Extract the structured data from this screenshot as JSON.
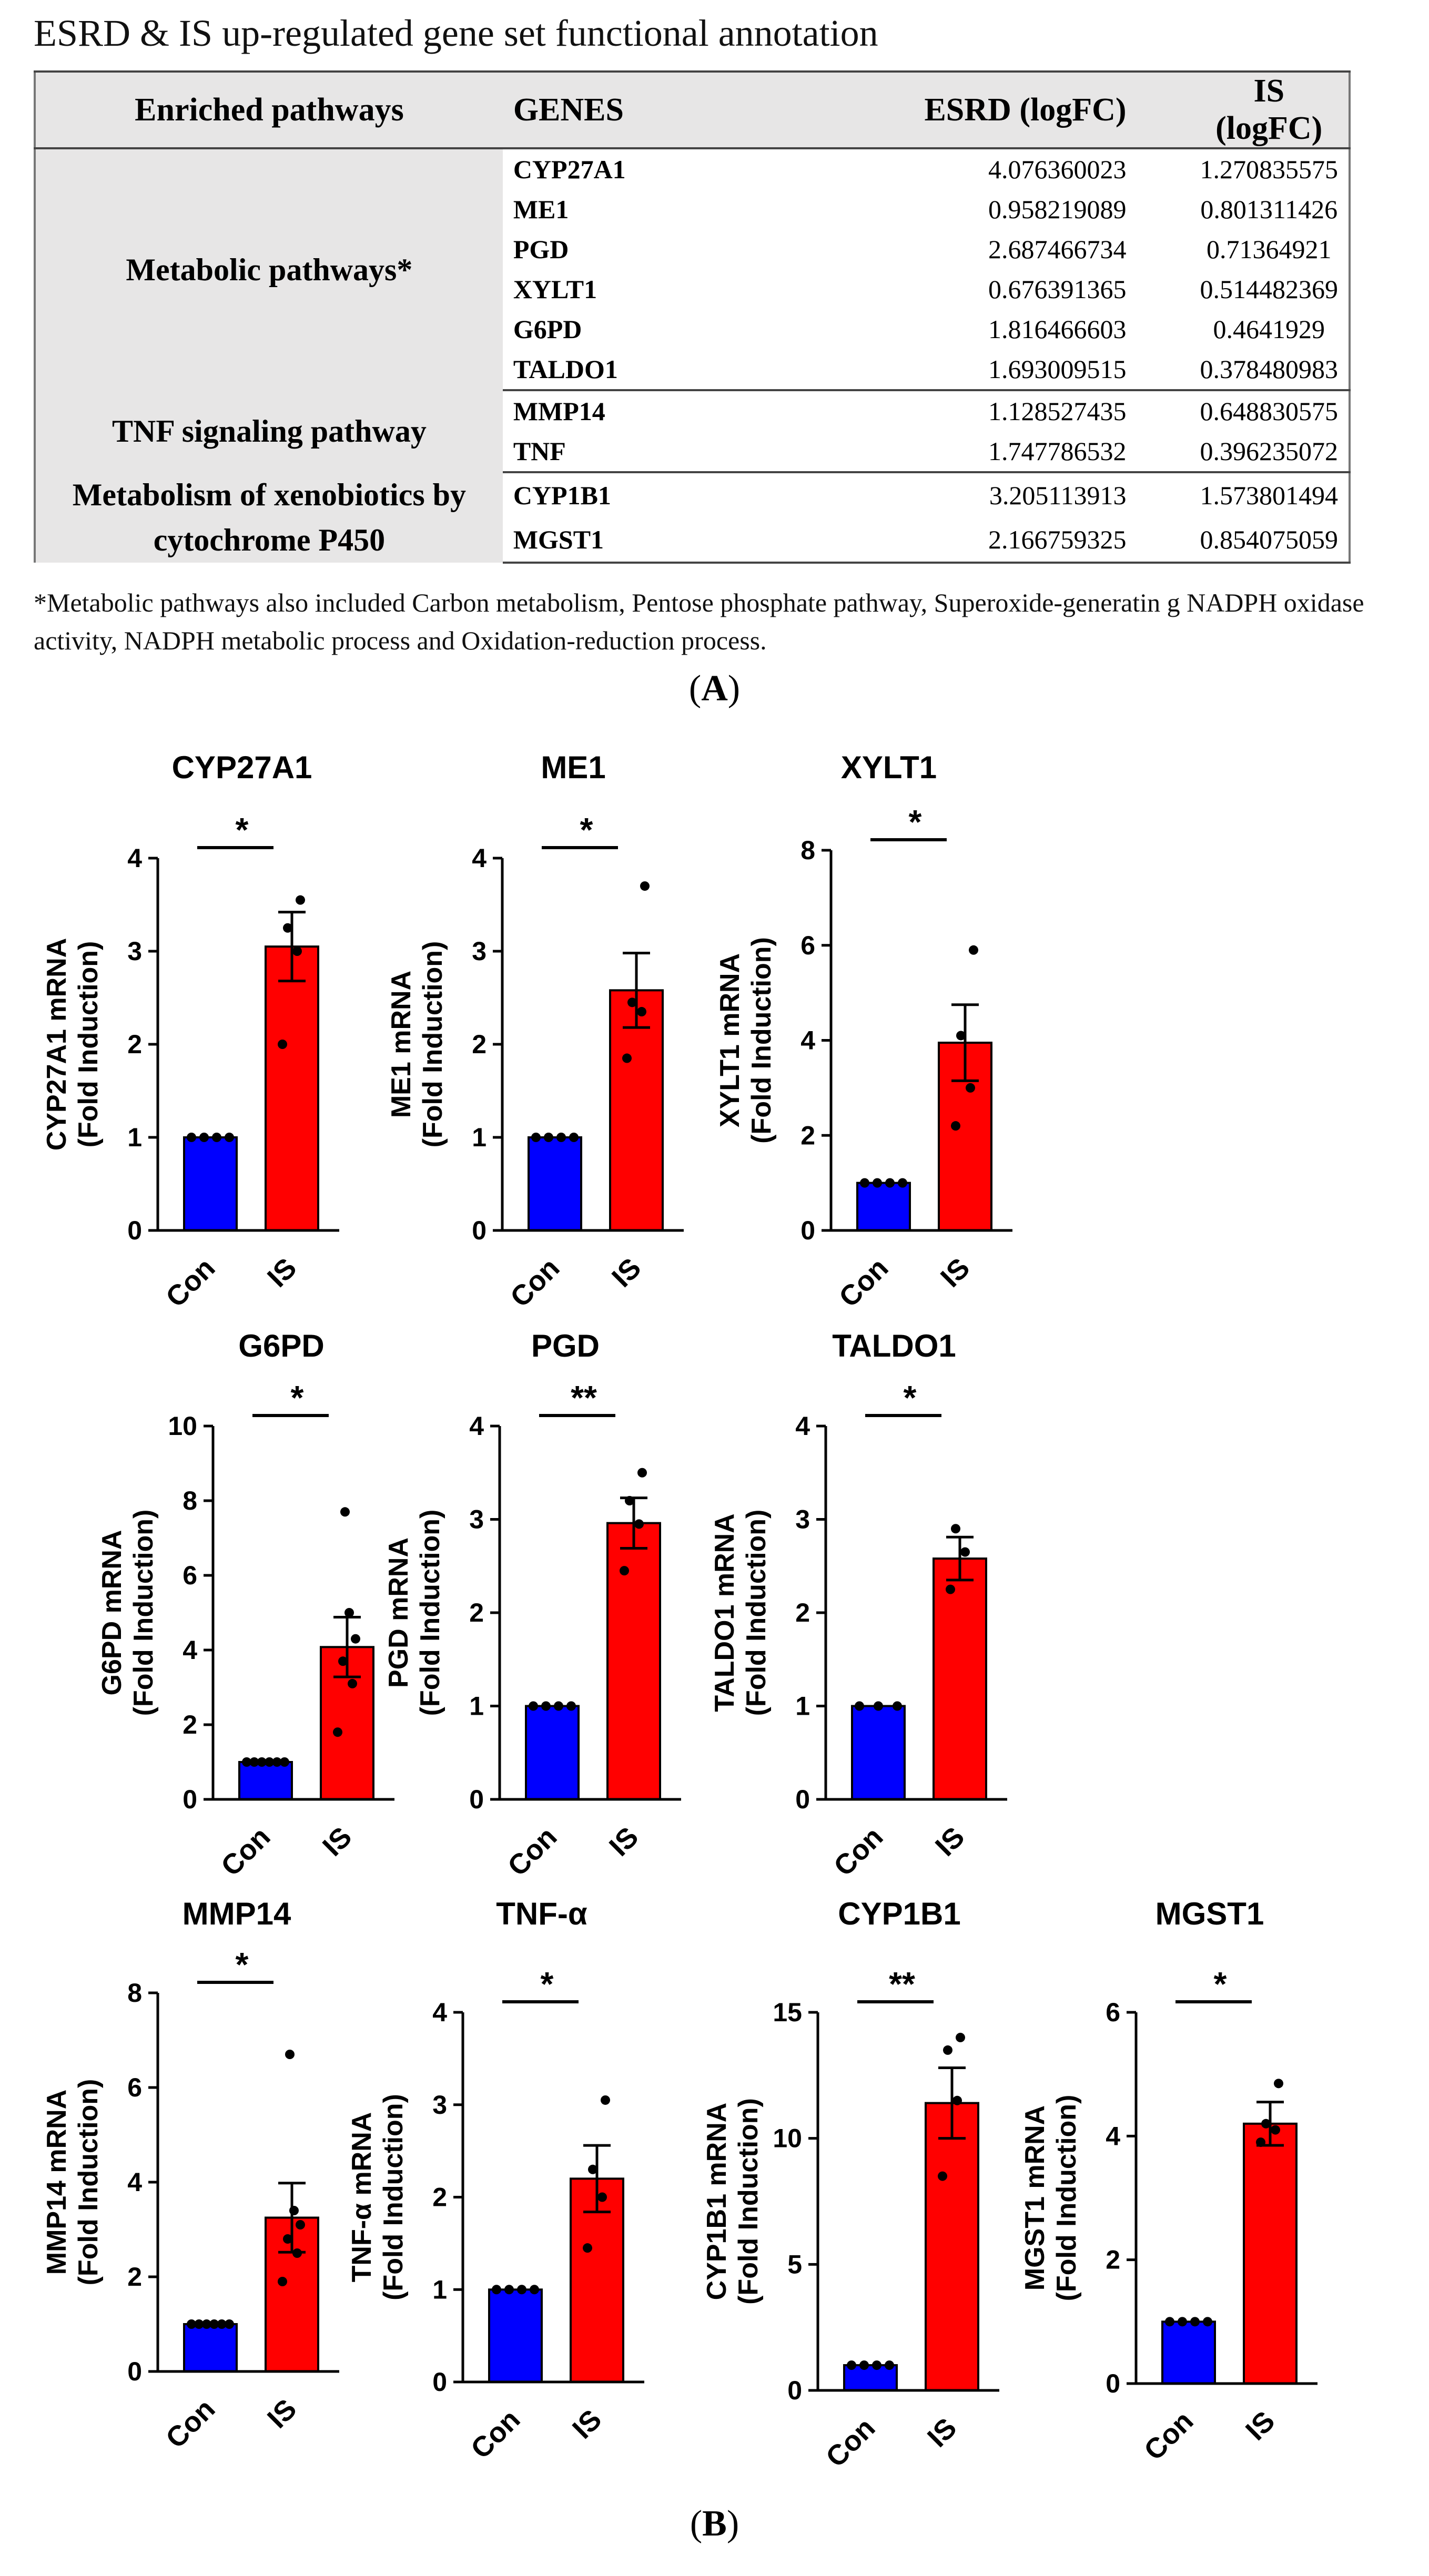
{
  "table": {
    "title": "ESRD & IS up-regulated gene set functional annotation",
    "headers": [
      "Enriched pathways",
      "GENES",
      "ESRD (logFC)",
      "IS (logFC)"
    ],
    "groups": [
      {
        "pathway": "Metabolic pathways*",
        "rows": [
          {
            "gene": "CYP27A1",
            "esrd": "4.076360023",
            "is": "1.270835575"
          },
          {
            "gene": "ME1",
            "esrd": "0.958219089",
            "is": "0.801311426"
          },
          {
            "gene": "PGD",
            "esrd": "2.687466734",
            "is": "0.71364921"
          },
          {
            "gene": "XYLT1",
            "esrd": "0.676391365",
            "is": "0.514482369"
          },
          {
            "gene": "G6PD",
            "esrd": "1.816466603",
            "is": "0.4641929"
          },
          {
            "gene": "TALDO1",
            "esrd": "1.693009515",
            "is": "0.378480983"
          }
        ]
      },
      {
        "pathway": "TNF signaling pathway",
        "rows": [
          {
            "gene": "MMP14",
            "esrd": "1.128527435",
            "is": "0.648830575"
          },
          {
            "gene": "TNF",
            "esrd": "1.747786532",
            "is": "0.396235072"
          }
        ]
      },
      {
        "pathway": "Metabolism of xenobiotics by cytochrome P450",
        "rows": [
          {
            "gene": "CYP1B1",
            "esrd": "3.205113913",
            "is": "1.573801494"
          },
          {
            "gene": "MGST1",
            "esrd": "2.166759325",
            "is": "0.854075059"
          }
        ]
      }
    ],
    "footnote": "*Metabolic pathways also included Carbon metabolism, Pentose phosphate pathway,  Superoxide-generatin g NADPH oxidase activity, NADPH metabolic process and Oxidation-reduction process."
  },
  "panel_labels": {
    "a": {
      "open": "(",
      "letter": "A",
      "close": ")"
    },
    "b": {
      "open": "(",
      "letter": "B",
      "close": ")"
    }
  },
  "colors": {
    "con_bar": "#0000ff",
    "is_bar": "#ff0000",
    "table_header_bg": "#e7e6e6"
  },
  "chart_data": [
    {
      "type": "bar",
      "title": "CYP27A1",
      "ylabel": "CYP27A1 mRNA",
      "ylabel2": "(Fold Induction)",
      "categories": [
        "Con",
        "IS"
      ],
      "values": [
        1.0,
        3.05
      ],
      "errors": [
        0,
        0.37
      ],
      "points": [
        [
          1,
          1,
          1,
          1
        ],
        [
          2.0,
          3.0,
          3.25,
          3.55
        ]
      ],
      "significance": "*",
      "ylim": [
        0,
        4
      ],
      "yticks": [
        "0",
        "1",
        "2",
        "3",
        "4"
      ]
    },
    {
      "type": "bar",
      "title": "ME1",
      "ylabel": "ME1 mRNA",
      "ylabel2": "(Fold Induction)",
      "categories": [
        "Con",
        "IS"
      ],
      "values": [
        1.0,
        2.58
      ],
      "errors": [
        0,
        0.4
      ],
      "points": [
        [
          1,
          1,
          1,
          1
        ],
        [
          1.85,
          2.35,
          2.45,
          3.7
        ]
      ],
      "significance": "*",
      "ylim": [
        0,
        4
      ],
      "yticks": [
        "0",
        "1",
        "2",
        "3",
        "4"
      ]
    },
    {
      "type": "bar",
      "title": "XYLT1",
      "ylabel": "XYLT1 mRNA",
      "ylabel2": "(Fold Induction)",
      "categories": [
        "Con",
        "IS"
      ],
      "values": [
        1.0,
        3.95
      ],
      "errors": [
        0,
        0.8
      ],
      "points": [
        [
          1,
          1,
          1,
          1
        ],
        [
          2.2,
          3.0,
          4.1,
          5.9
        ]
      ],
      "significance": "*",
      "ylim": [
        0,
        8
      ],
      "yticks": [
        "0",
        "2",
        "4",
        "6",
        "8"
      ]
    },
    {
      "type": "bar",
      "title": "G6PD",
      "ylabel": "G6PD mRNA",
      "ylabel2": "(Fold Induction)",
      "categories": [
        "Con",
        "IS"
      ],
      "values": [
        1.0,
        4.08
      ],
      "errors": [
        0,
        0.8
      ],
      "points": [
        [
          1,
          1,
          1,
          1,
          1,
          1
        ],
        [
          1.8,
          3.1,
          3.7,
          4.3,
          5.0,
          7.7
        ]
      ],
      "significance": "*",
      "ylim": [
        0,
        10
      ],
      "yticks": [
        "0",
        "2",
        "4",
        "6",
        "8",
        "10"
      ]
    },
    {
      "type": "bar",
      "title": "PGD",
      "ylabel": "PGD mRNA",
      "ylabel2": "(Fold Induction)",
      "categories": [
        "Con",
        "IS"
      ],
      "values": [
        1.0,
        2.96
      ],
      "errors": [
        0,
        0.27
      ],
      "points": [
        [
          1,
          1,
          1,
          1
        ],
        [
          2.45,
          2.95,
          3.2,
          3.5
        ]
      ],
      "significance": "**",
      "ylim": [
        0,
        4
      ],
      "yticks": [
        "0",
        "1",
        "2",
        "3",
        "4"
      ]
    },
    {
      "type": "bar",
      "title": "TALDO1",
      "ylabel": "TALDO1 mRNA",
      "ylabel2": "(Fold Induction)",
      "categories": [
        "Con",
        "IS"
      ],
      "values": [
        1.0,
        2.58
      ],
      "errors": [
        0,
        0.23
      ],
      "points": [
        [
          1,
          1,
          1
        ],
        [
          2.25,
          2.65,
          2.9
        ]
      ],
      "significance": "*",
      "ylim": [
        0,
        4
      ],
      "yticks": [
        "0",
        "1",
        "2",
        "3",
        "4"
      ]
    },
    {
      "type": "bar",
      "title": "MMP14",
      "ylabel": "MMP14 mRNA",
      "ylabel2": "(Fold Induction)",
      "categories": [
        "Con",
        "IS"
      ],
      "values": [
        1.0,
        3.25
      ],
      "errors": [
        0,
        0.73
      ],
      "points": [
        [
          1,
          1,
          1,
          1,
          1,
          1
        ],
        [
          1.9,
          2.5,
          2.8,
          3.1,
          3.4,
          6.7
        ]
      ],
      "significance": "*",
      "ylim": [
        0,
        8
      ],
      "yticks": [
        "0",
        "2",
        "4",
        "6",
        "8"
      ]
    },
    {
      "type": "bar",
      "title": "TNF-α",
      "ylabel": "TNF-α mRNA",
      "ylabel2": "(Fold Induction)",
      "categories": [
        "Con",
        "IS"
      ],
      "values": [
        1.0,
        2.2
      ],
      "errors": [
        0,
        0.36
      ],
      "points": [
        [
          1,
          1,
          1,
          1
        ],
        [
          1.45,
          2.0,
          2.3,
          3.05
        ]
      ],
      "significance": "*",
      "ylim": [
        0,
        4
      ],
      "yticks": [
        "0",
        "1",
        "2",
        "3",
        "4"
      ]
    },
    {
      "type": "bar",
      "title": "CYP1B1",
      "ylabel": "CYP1B1 mRNA",
      "ylabel2": "(Fold Induction)",
      "categories": [
        "Con",
        "IS"
      ],
      "values": [
        1.0,
        11.4
      ],
      "errors": [
        0,
        1.4
      ],
      "points": [
        [
          1,
          1,
          1,
          1
        ],
        [
          8.5,
          11.5,
          13.5,
          14.0
        ]
      ],
      "significance": "**",
      "ylim": [
        0,
        15
      ],
      "yticks": [
        "0",
        "5",
        "10",
        "15"
      ]
    },
    {
      "type": "bar",
      "title": "MGST1",
      "ylabel": "MGST1 mRNA",
      "ylabel2": "(Fold Induction)",
      "categories": [
        "Con",
        "IS"
      ],
      "values": [
        1.0,
        4.2
      ],
      "errors": [
        0,
        0.35
      ],
      "points": [
        [
          1,
          1,
          1,
          1
        ],
        [
          3.9,
          4.1,
          4.2,
          4.85
        ]
      ],
      "significance": "*",
      "ylim": [
        0,
        6
      ],
      "yticks": [
        "0",
        "2",
        "4",
        "6"
      ]
    }
  ]
}
